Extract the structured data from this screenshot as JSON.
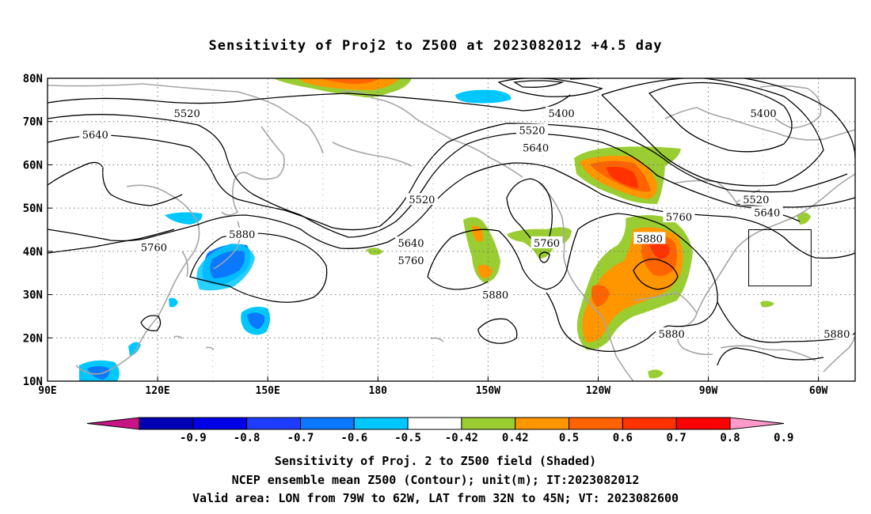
{
  "title": "Sensitivity of Proj2 to Z500 at 2023082012 +4.5 day",
  "map": {
    "lon_range": [
      90,
      310
    ],
    "lat_range": [
      10,
      80
    ],
    "lat_ticks": [
      "80N",
      "70N",
      "60N",
      "50N",
      "40N",
      "30N",
      "20N",
      "10N"
    ],
    "lon_ticks": [
      "90E",
      "120E",
      "150E",
      "180",
      "150W",
      "120W",
      "90W",
      "60W"
    ],
    "grid": "dotted",
    "contour_labels": [
      {
        "text": "5520",
        "lon": 128,
        "lat": 72
      },
      {
        "text": "5640",
        "lon": 103,
        "lat": 67
      },
      {
        "text": "5400",
        "lon": 230,
        "lat": 72
      },
      {
        "text": "5520",
        "lon": 222,
        "lat": 68
      },
      {
        "text": "5640",
        "lon": 223,
        "lat": 64
      },
      {
        "text": "5400",
        "lon": 285,
        "lat": 72
      },
      {
        "text": "5520",
        "lon": 192,
        "lat": 52
      },
      {
        "text": "5640",
        "lon": 286,
        "lat": 49
      },
      {
        "text": "5520",
        "lon": 283,
        "lat": 52
      },
      {
        "text": "5760",
        "lon": 262,
        "lat": 48
      },
      {
        "text": "5880",
        "lon": 143,
        "lat": 44
      },
      {
        "text": "5760",
        "lon": 119,
        "lat": 41
      },
      {
        "text": "5640",
        "lon": 189,
        "lat": 42
      },
      {
        "text": "5760",
        "lon": 189,
        "lat": 38
      },
      {
        "text": "5760",
        "lon": 226,
        "lat": 42
      },
      {
        "text": "5880",
        "lon": 254,
        "lat": 43
      },
      {
        "text": "5880",
        "lon": 212,
        "lat": 30
      },
      {
        "text": "5880",
        "lon": 260,
        "lat": 21
      },
      {
        "text": "5880",
        "lon": 305,
        "lat": 21
      }
    ],
    "valid_area": {
      "lon": [
        281,
        298
      ],
      "lat": [
        32,
        45
      ]
    }
  },
  "colorbar": {
    "labels": [
      "-0.9",
      "-0.8",
      "-0.7",
      "-0.6",
      "-0.5",
      "-0.42",
      "0.42",
      "0.5",
      "0.6",
      "0.7",
      "0.8",
      "0.9"
    ],
    "colors": [
      "#c71585",
      "#0000b4",
      "#0000e6",
      "#1e3cff",
      "#0a78ff",
      "#00c8ff",
      "#ffffff",
      "#9acd32",
      "#ff9600",
      "#ff6400",
      "#ff3200",
      "#ff0000",
      "#ff99cc"
    ]
  },
  "captions": [
    "Sensitivity of Proj. 2 to Z500 field (Shaded)",
    "NCEP ensemble mean Z500 (Contour); unit(m); IT:2023082012",
    "Valid area: LON from 79W to 62W, LAT from 32N to 45N; VT: 2023082600"
  ]
}
